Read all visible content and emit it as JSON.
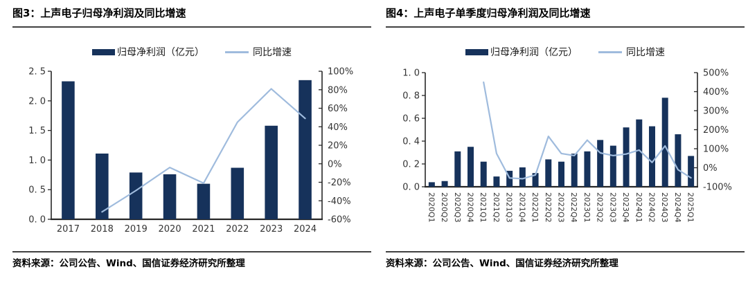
{
  "colors": {
    "bar": "#16325B",
    "line": "#9FBBDD",
    "axis": "#262626",
    "rule": "#404040",
    "tick_text": "#333333",
    "title_text": "#000000"
  },
  "chart_data": [
    {
      "id": "fig3",
      "type": "bar+line",
      "title": "图3：上声电子归母净利润及同比增速",
      "source_note": "资料来源：公司公告、Wind、国信证券经济研究所整理",
      "legend_position": "top",
      "grid": false,
      "categories": [
        "2017",
        "2018",
        "2019",
        "2020",
        "2021",
        "2022",
        "2023",
        "2024"
      ],
      "series": [
        {
          "name": "归母净利润（亿元）",
          "type": "bar",
          "axis": "left",
          "values": [
            2.33,
            1.11,
            0.79,
            0.76,
            0.6,
            0.87,
            1.58,
            2.35
          ]
        },
        {
          "name": "同比增速",
          "type": "line",
          "axis": "right",
          "values": [
            null,
            -52,
            -29,
            -4,
            -21,
            45,
            81,
            49
          ]
        }
      ],
      "left_axis": {
        "min": 0,
        "max": 2.5,
        "tick_labels": [
          "0. 0",
          "0. 5",
          "1. 0",
          "1. 5",
          "2. 0",
          "2. 5"
        ]
      },
      "right_axis": {
        "min": -60,
        "max": 100,
        "unit": "%",
        "tick_labels": [
          "-60%",
          "-40%",
          "-20%",
          "0%",
          "20%",
          "40%",
          "60%",
          "80%",
          "100%"
        ]
      }
    },
    {
      "id": "fig4",
      "type": "bar+line",
      "title": "图4：上声电子单季度归母净利润及同比增速",
      "source_note": "资料来源：公司公告、Wind、国信证券经济研究所整理",
      "legend_position": "top",
      "grid": false,
      "categories": [
        "2020Q1",
        "2020Q2",
        "2020Q3",
        "2020Q4",
        "2021Q1",
        "2021Q2",
        "2021Q3",
        "2021Q4",
        "2022Q1",
        "2022Q2",
        "2022Q3",
        "2022Q4",
        "2023Q1",
        "2023Q2",
        "2023Q3",
        "2023Q4",
        "2024Q1",
        "2024Q2",
        "2024Q3",
        "2024Q4",
        "2025Q1"
      ],
      "series": [
        {
          "name": "归母净利润（亿元）",
          "type": "bar",
          "axis": "left",
          "values": [
            0.04,
            0.05,
            0.31,
            0.35,
            0.22,
            0.09,
            0.14,
            0.17,
            0.12,
            0.24,
            0.22,
            0.29,
            0.31,
            0.41,
            0.36,
            0.52,
            0.59,
            0.53,
            0.78,
            0.46,
            0.27
          ]
        },
        {
          "name": "同比增速",
          "type": "line",
          "axis": "right",
          "values": [
            null,
            null,
            null,
            null,
            450,
            75,
            -54,
            -58,
            -38,
            165,
            75,
            64,
            145,
            78,
            64,
            72,
            93,
            28,
            115,
            -10,
            -53
          ]
        }
      ],
      "left_axis": {
        "min": 0,
        "max": 1.0,
        "tick_labels": [
          "0. 0",
          "0. 2",
          "0. 4",
          "0. 6",
          "0. 8",
          "1. 0"
        ]
      },
      "right_axis": {
        "min": -100,
        "max": 500,
        "unit": "%",
        "tick_labels": [
          "-100%",
          "0%",
          "100%",
          "200%",
          "300%",
          "400%",
          "500%"
        ]
      }
    }
  ]
}
